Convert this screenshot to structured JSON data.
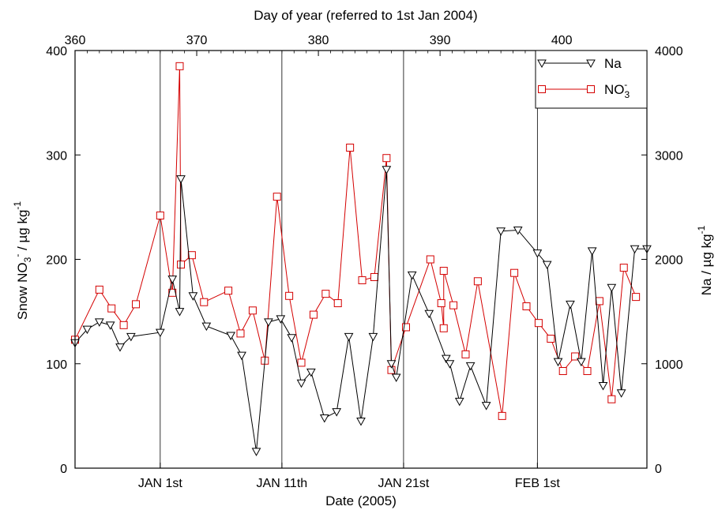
{
  "chart_data": {
    "type": "line",
    "top_axis": {
      "label": "Day of year (referred to 1st Jan 2004)",
      "range": [
        360,
        407
      ],
      "ticks": [
        360,
        370,
        380,
        390,
        400
      ]
    },
    "bottom_axis": {
      "label": "Date (2005)",
      "range": [
        360,
        407
      ],
      "date_ticks": [
        {
          "label": "JAN 1st",
          "day": 367
        },
        {
          "label": "JAN 11th",
          "day": 377
        },
        {
          "label": "JAN 21st",
          "day": 387
        },
        {
          "label": "FEB 1st",
          "day": 398
        }
      ]
    },
    "left_axis": {
      "label_main": "Snow NO",
      "label_sub": "3",
      "label_sup": "-",
      "label_unit": " / µg kg",
      "label_unit_sup": "-1",
      "range": [
        0,
        400
      ],
      "ticks": [
        0,
        100,
        200,
        300,
        400
      ]
    },
    "right_axis": {
      "label_main": "Na / µg kg",
      "label_sup": "-1",
      "range": [
        0,
        4000
      ],
      "ticks": [
        0,
        1000,
        2000,
        3000,
        4000
      ]
    },
    "vertical_lines_days": [
      367,
      377,
      387,
      398
    ],
    "legend": {
      "placement": "top-right",
      "entries": [
        {
          "series": "Na",
          "text": "Na",
          "sup": "",
          "sub": ""
        },
        {
          "series": "NO3",
          "text": "NO",
          "sub": "3",
          "sup": "-"
        }
      ]
    },
    "series": [
      {
        "id": "Na",
        "axis": "right",
        "color": "#000000",
        "marker": "triangle-down",
        "x": [
          360.0,
          361.0,
          362.0,
          362.9,
          363.7,
          364.6,
          367.0,
          368.0,
          368.6,
          368.7,
          369.7,
          370.8,
          372.8,
          373.7,
          374.9,
          375.9,
          376.9,
          377.8,
          378.6,
          379.4,
          380.5,
          381.5,
          382.5,
          383.5,
          384.5,
          385.6,
          386.0,
          386.4,
          387.7,
          389.1,
          390.5,
          390.8,
          391.6,
          392.5,
          393.8,
          395.0,
          396.4,
          398.0,
          398.8,
          399.7,
          400.7,
          401.6,
          402.5,
          403.4,
          404.1,
          404.9,
          406.0,
          407.0
        ],
        "y": [
          1200,
          1330,
          1400,
          1370,
          1160,
          1260,
          1300,
          1810,
          1500,
          2770,
          1650,
          1360,
          1270,
          1080,
          160,
          1400,
          1430,
          1250,
          815,
          920,
          480,
          540,
          1260,
          450,
          1260,
          2860,
          1000,
          870,
          1850,
          1480,
          1050,
          1000,
          640,
          980,
          600,
          2270,
          2280,
          2060,
          1950,
          1020,
          1570,
          1020,
          2080,
          790,
          1730,
          720,
          2100,
          2100
        ]
      },
      {
        "id": "NO3",
        "axis": "left",
        "color": "#d40000",
        "marker": "square",
        "x": [
          360.0,
          362.0,
          363.0,
          364.0,
          365.0,
          367.0,
          368.0,
          368.6,
          368.7,
          369.6,
          370.6,
          372.6,
          373.6,
          374.6,
          375.6,
          376.6,
          377.6,
          378.6,
          379.6,
          380.6,
          381.6,
          382.6,
          383.6,
          384.6,
          385.6,
          386.0,
          387.2,
          389.2,
          390.1,
          390.3,
          390.3,
          391.1,
          392.1,
          393.1,
          395.1,
          396.1,
          397.1,
          398.1,
          399.1,
          400.1,
          401.1,
          402.1,
          403.1,
          404.1,
          405.1,
          406.1
        ],
        "y": [
          123,
          171,
          153,
          137,
          157,
          242,
          168,
          385,
          195,
          204,
          159,
          170,
          129,
          151,
          103,
          260,
          165,
          101,
          147,
          167,
          158,
          307,
          180,
          183,
          297,
          94,
          135,
          200,
          158,
          134,
          189,
          156,
          109,
          179,
          50,
          187,
          155,
          139,
          124,
          93,
          107,
          93,
          160,
          66,
          192,
          164
        ]
      }
    ]
  }
}
